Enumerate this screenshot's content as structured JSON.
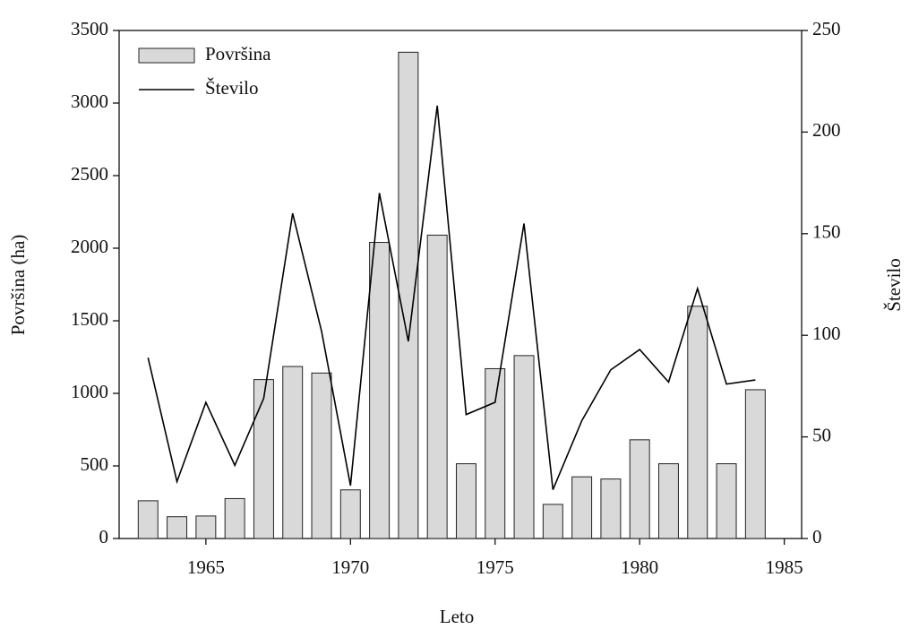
{
  "chart_data": {
    "type": "bar",
    "x_label": "Leto",
    "y_label": "Površina (ha)",
    "y2_label": "Število",
    "x": [
      1963,
      1964,
      1965,
      1966,
      1967,
      1968,
      1969,
      1970,
      1971,
      1972,
      1973,
      1974,
      1975,
      1976,
      1977,
      1978,
      1979,
      1980,
      1981,
      1982,
      1983,
      1984
    ],
    "series": [
      {
        "name": "Površina",
        "type": "bar",
        "color": "#d9d9d9",
        "values": [
          260,
          150,
          155,
          275,
          1095,
          1185,
          1140,
          335,
          2040,
          3350,
          2090,
          515,
          1170,
          1260,
          235,
          425,
          410,
          680,
          515,
          1600,
          515,
          1025
        ]
      },
      {
        "name": "Število",
        "type": "line",
        "color": "#000000",
        "axis": "y2",
        "values": [
          89,
          28,
          67,
          36,
          69,
          160,
          102,
          26,
          170,
          97,
          213,
          61,
          67,
          155,
          24,
          58,
          83,
          93,
          77,
          123,
          76,
          78
        ]
      }
    ],
    "xlim": [
      1962,
      1985.6
    ],
    "xticks": [
      1965,
      1970,
      1975,
      1980,
      1985
    ],
    "ylim": [
      0,
      3500
    ],
    "yticks": [
      0,
      500,
      1000,
      1500,
      2000,
      2500,
      3000,
      3500
    ],
    "y2lim": [
      0,
      250
    ],
    "y2ticks": [
      0,
      50,
      100,
      150,
      200,
      250
    ],
    "legend": "upper left"
  }
}
